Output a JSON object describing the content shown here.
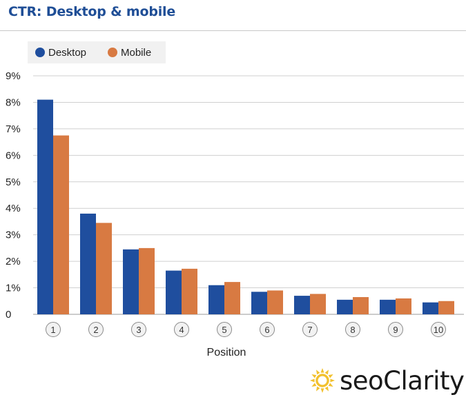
{
  "chart_data": {
    "type": "bar",
    "title": "CTR: Desktop & mobile",
    "xlabel": "Position",
    "ylabel": "",
    "categories": [
      "1",
      "2",
      "3",
      "4",
      "5",
      "6",
      "7",
      "8",
      "9",
      "10"
    ],
    "series": [
      {
        "name": "Desktop",
        "color": "#1f4e9e",
        "values": [
          8.1,
          3.8,
          2.45,
          1.65,
          1.1,
          0.85,
          0.7,
          0.55,
          0.55,
          0.45
        ]
      },
      {
        "name": "Mobile",
        "color": "#d87a42",
        "values": [
          6.75,
          3.45,
          2.5,
          1.72,
          1.22,
          0.9,
          0.77,
          0.65,
          0.6,
          0.5
        ]
      }
    ],
    "ylim": [
      0,
      9
    ],
    "yticks": [
      "0",
      "1%",
      "2%",
      "3%",
      "4%",
      "5%",
      "6%",
      "7%",
      "8%",
      "9%"
    ],
    "grid": true,
    "legend_position": "top-left"
  },
  "logo": {
    "text": "seoClarity",
    "icon": "sun-icon"
  }
}
